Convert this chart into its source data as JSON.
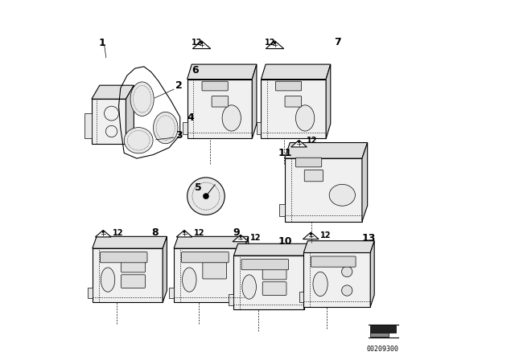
{
  "title": "",
  "bg_color": "#ffffff",
  "line_color": "#000000",
  "part_number": "00209300",
  "font_size_label": 9,
  "font_size_partnum": 7
}
